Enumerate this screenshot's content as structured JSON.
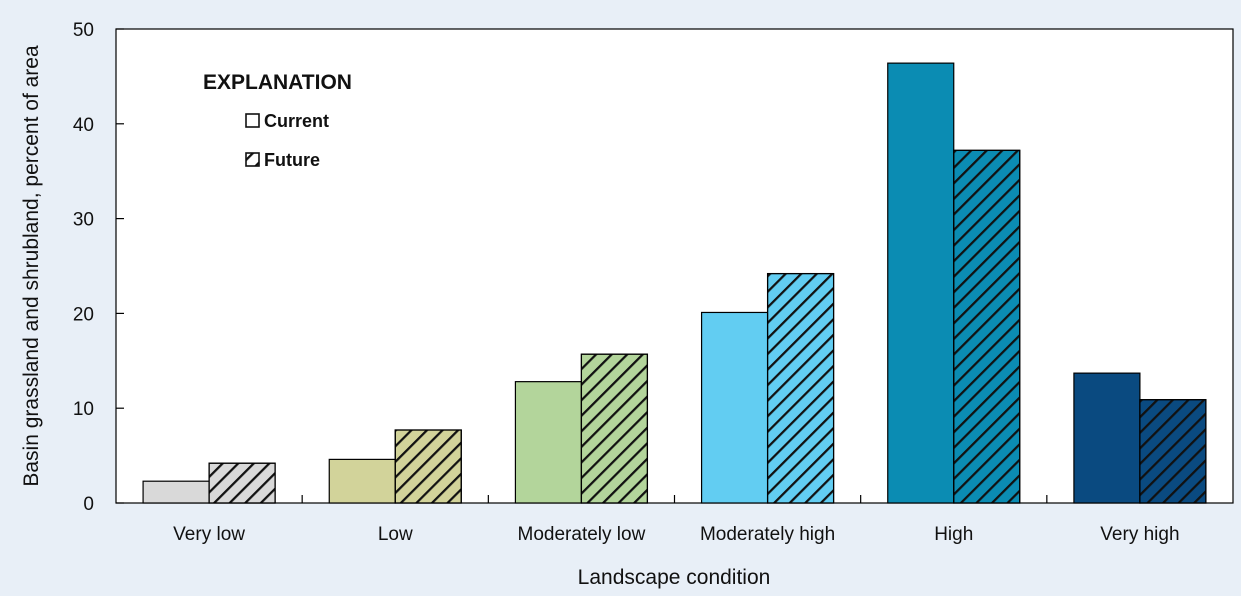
{
  "chart_data": {
    "type": "bar",
    "xlabel": "Landscape condition",
    "ylabel": "Basin grassland and shrubland, percent of area",
    "ylim": [
      0,
      50
    ],
    "yticks": [
      0,
      10,
      20,
      30,
      40,
      50
    ],
    "categories": [
      "Very low",
      "Low",
      "Moderately low",
      "Moderately high",
      "High",
      "Very high"
    ],
    "category_colors": [
      "#d9d9d9",
      "#d2d39a",
      "#b3d59b",
      "#62cdf2",
      "#0b8cb3",
      "#0a4a80"
    ],
    "series": [
      {
        "name": "Current",
        "pattern": "solid",
        "values": [
          2.3,
          4.6,
          12.8,
          20.1,
          46.4,
          13.7
        ]
      },
      {
        "name": "Future",
        "pattern": "hatched",
        "values": [
          4.2,
          7.7,
          15.7,
          24.2,
          37.2,
          10.9
        ]
      }
    ],
    "legend": {
      "title": "EXPLANATION",
      "position": "top-left",
      "entries": [
        "Current",
        "Future"
      ]
    },
    "grid": false
  }
}
